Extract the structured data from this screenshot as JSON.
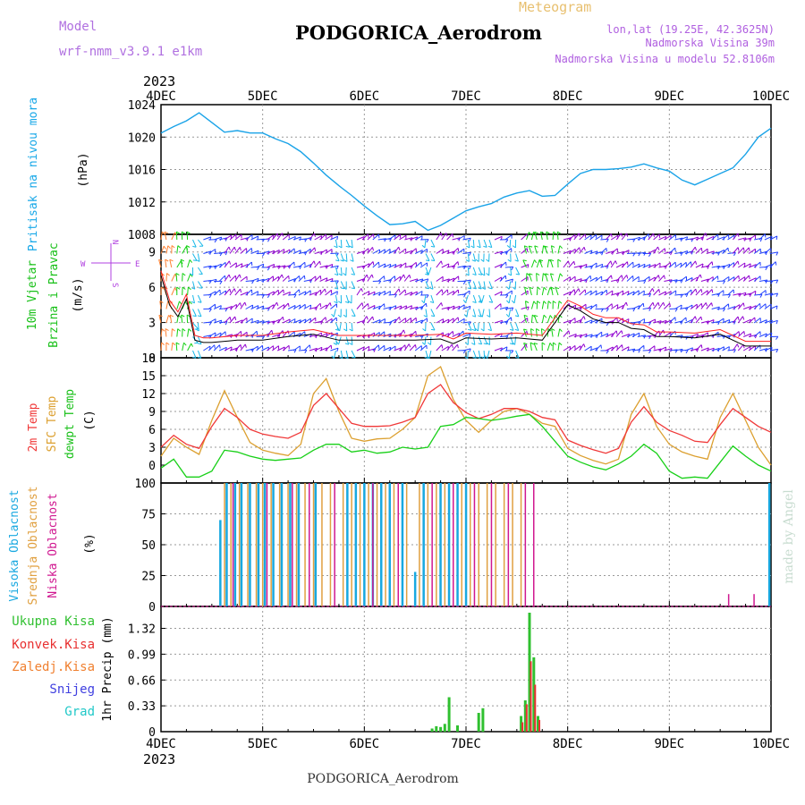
{
  "header": {
    "subtitle": "Meteogram",
    "station": "PODGORICA_Aerodrom",
    "model_label": "Model",
    "model_name": "wrf-nmm_v3.9.1 e1km",
    "lonlat": "lon,lat (19.25E, 42.3625N)",
    "elevation": "Nadmorska Visina 39m",
    "model_elevation": "Nadmorska Visina u modelu 52.8106m",
    "footer_station": "PODGORICA_Aerodrom",
    "watermark": "made by Angel"
  },
  "colors": {
    "pressure": "#1aa3e8",
    "wind_purple": "#9000d0",
    "wind_blue": "#2040ff",
    "wind_cyan": "#18b8e8",
    "wind_green": "#10d010",
    "wind_red": "#ff2020",
    "wind_orange": "#ff8030",
    "temp2m": "#f03838",
    "sfc_temp": "#dca030",
    "dewpoint": "#18d018",
    "cloud_high": "#18a8e0",
    "cloud_mid": "#e0a040",
    "cloud_low": "#d01890",
    "precip_total": "#30c030",
    "precip_conv": "#e83030",
    "precip_frozen": "#f08030",
    "precip_snow": "#4040e0",
    "precip_hail": "#20c8c8"
  },
  "chart_data": [
    {
      "type": "line",
      "id": "pressure",
      "ylabel_1": "Pritisak na nivou mora",
      "ylabel_2": "(hPa)",
      "ylim": [
        1008,
        1024
      ],
      "yticks": [
        1008,
        1012,
        1016,
        1020,
        1024
      ],
      "xlim": [
        0,
        144
      ],
      "xticks": [
        0,
        24,
        48,
        72,
        96,
        120,
        144
      ],
      "xticklabels": [
        "4DEC",
        "5DEC",
        "6DEC",
        "7DEC",
        "8DEC",
        "9DEC",
        "10DEC"
      ],
      "year": "2023",
      "x_hours": [
        0,
        3,
        6,
        9,
        12,
        15,
        18,
        21,
        24,
        27,
        30,
        33,
        36,
        39,
        42,
        45,
        48,
        51,
        54,
        57,
        60,
        63,
        66,
        69,
        72,
        75,
        78,
        81,
        84,
        87,
        90,
        93,
        96,
        99,
        102,
        105,
        108,
        111,
        114,
        117,
        120,
        123,
        126,
        129,
        132,
        135,
        138,
        141,
        144
      ],
      "series": [
        {
          "values": [
            1020.5,
            1021.3,
            1022.0,
            1023.0,
            1021.8,
            1020.6,
            1020.8,
            1020.5,
            1020.5,
            1019.8,
            1019.2,
            1018.2,
            1016.8,
            1015.3,
            1014.0,
            1012.8,
            1011.5,
            1010.3,
            1009.2,
            1009.3,
            1009.6,
            1008.5,
            1009.1,
            1010.0,
            1010.9,
            1011.4,
            1011.8,
            1012.6,
            1013.1,
            1013.4,
            1012.7,
            1012.8,
            1014.2,
            1015.5,
            1016.0,
            1016.0,
            1016.1,
            1016.3,
            1016.7,
            1016.2,
            1015.8,
            1014.7,
            1014.1,
            1014.8,
            1015.5,
            1016.2,
            1017.9,
            1020.0,
            1021.1
          ]
        }
      ]
    },
    {
      "type": "line",
      "id": "wind",
      "ylabel_1": "10m Vjetar",
      "ylabel_2": "Brzina i Pravac",
      "ylabel_3": "(m/s)",
      "compass_n": "N",
      "compass_s": "S",
      "compass_e": "E",
      "compass_w": "W",
      "ylim": [
        0,
        10.5
      ],
      "yticks": [
        0,
        3,
        6,
        9
      ],
      "x_hours": [
        0,
        2,
        4,
        6,
        8,
        10,
        12,
        18,
        24,
        30,
        36,
        42,
        48,
        54,
        60,
        66,
        69,
        72,
        78,
        84,
        90,
        96,
        99,
        102,
        105,
        108,
        111,
        114,
        117,
        120,
        126,
        132,
        138,
        144
      ],
      "series": [
        {
          "values": [
            7.0,
            4.5,
            3.5,
            5.0,
            1.5,
            1.3,
            1.3,
            1.5,
            1.5,
            1.8,
            2.0,
            1.5,
            1.5,
            1.5,
            1.5,
            1.6,
            1.2,
            1.7,
            1.6,
            1.7,
            1.5,
            4.5,
            4.0,
            3.3,
            3.0,
            3.0,
            2.5,
            2.4,
            1.8,
            1.8,
            1.7,
            2.0,
            1.0,
            1.0
          ]
        }
      ]
    },
    {
      "type": "line",
      "id": "temperature",
      "ylabel_1": "2m Temp",
      "ylabel_2": "SFC Temp",
      "ylabel_3": "dewpt Temp",
      "ylabel_4": "(C)",
      "ylim": [
        -3,
        18
      ],
      "yticks": [
        0,
        3,
        6,
        9,
        12,
        15,
        18
      ],
      "x_hours": [
        0,
        3,
        6,
        9,
        12,
        15,
        18,
        21,
        24,
        27,
        30,
        33,
        36,
        39,
        42,
        45,
        48,
        51,
        54,
        57,
        60,
        63,
        66,
        69,
        72,
        75,
        78,
        81,
        84,
        87,
        90,
        93,
        96,
        99,
        102,
        105,
        108,
        111,
        114,
        117,
        120,
        123,
        126,
        129,
        132,
        135,
        138,
        141,
        144
      ],
      "series": [
        {
          "name": "2m Temp",
          "values": [
            3.0,
            5.0,
            3.5,
            2.8,
            6.5,
            9.5,
            8.0,
            6.0,
            5.2,
            4.8,
            4.5,
            5.5,
            10.0,
            12.0,
            9.5,
            7.0,
            6.5,
            6.5,
            6.6,
            7.2,
            8.0,
            12.0,
            13.5,
            10.5,
            8.8,
            7.8,
            8.5,
            9.5,
            9.5,
            9.0,
            8.0,
            7.6,
            4.2,
            3.3,
            2.6,
            2.0,
            2.8,
            7.2,
            9.8,
            7.2,
            5.8,
            5.0,
            4.0,
            3.8,
            6.8,
            9.5,
            8.0,
            6.5,
            5.5
          ]
        },
        {
          "name": "SFC Temp",
          "values": [
            1.5,
            4.5,
            3.0,
            1.8,
            7.5,
            12.5,
            8.0,
            3.8,
            2.5,
            2.0,
            1.6,
            3.5,
            12.0,
            14.5,
            9.0,
            4.5,
            4.0,
            4.4,
            4.5,
            6.0,
            8.0,
            15.0,
            16.5,
            11.0,
            7.5,
            5.5,
            7.5,
            9.0,
            9.5,
            8.5,
            7.0,
            6.5,
            2.8,
            1.6,
            0.8,
            0.2,
            1.0,
            8.5,
            12.0,
            6.5,
            3.5,
            2.2,
            1.5,
            1.0,
            8.0,
            12.0,
            7.5,
            3.0,
            0.0
          ]
        },
        {
          "name": "dewpt Temp",
          "values": [
            -0.5,
            1.0,
            -2.0,
            -2.0,
            -1.0,
            2.5,
            2.2,
            1.5,
            1.0,
            0.8,
            1.0,
            1.2,
            2.5,
            3.5,
            3.5,
            2.2,
            2.5,
            2.0,
            2.2,
            3.0,
            2.7,
            3.0,
            6.5,
            6.8,
            8.0,
            7.8,
            7.5,
            7.8,
            8.2,
            8.5,
            6.5,
            4.0,
            1.5,
            0.5,
            -0.3,
            -0.8,
            0.2,
            1.5,
            3.5,
            2.0,
            -1.0,
            -2.2,
            -2.0,
            -2.2,
            0.5,
            3.2,
            1.5,
            0.0,
            -1.0
          ]
        }
      ]
    },
    {
      "type": "bar",
      "id": "clouds",
      "ylabel_1": "Visoka Oblacnost",
      "ylabel_2": "Srednja Oblacnost",
      "ylabel_3": "Niska Oblacnost",
      "ylabel_4": "(%)",
      "ylim": [
        0,
        100
      ],
      "yticks": [
        0,
        25,
        50,
        75,
        100
      ],
      "series": [
        {
          "name": "Visoka Oblacnost",
          "x_hours": [
            14,
            15.5,
            17.5,
            19,
            21,
            23,
            24.5,
            26.5,
            28.5,
            30.5,
            32.5,
            36.5,
            44,
            46,
            48,
            50,
            52,
            54,
            57,
            60,
            62,
            66,
            68,
            70,
            72
          ],
          "values": [
            70,
            100,
            100,
            100,
            100,
            100,
            100,
            100,
            100,
            100,
            100,
            100,
            100,
            100,
            100,
            100,
            100,
            100,
            100,
            28,
            100,
            100,
            100,
            100,
            100
          ]
        },
        {
          "name": "Srednja Oblacnost",
          "x_hours": [
            15,
            16.5,
            18.5,
            20.5,
            22.5,
            24,
            26,
            28,
            30,
            32,
            34,
            36,
            38,
            40,
            43,
            45,
            47,
            49,
            51,
            53,
            55,
            58,
            61,
            63,
            65,
            67,
            69,
            71,
            73,
            75,
            77,
            79,
            81,
            83,
            85
          ],
          "values": [
            100,
            100,
            100,
            100,
            100,
            100,
            100,
            100,
            100,
            100,
            100,
            100,
            100,
            100,
            100,
            100,
            100,
            100,
            100,
            100,
            100,
            100,
            100,
            100,
            100,
            100,
            100,
            100,
            100,
            100,
            100,
            100,
            100,
            100,
            100
          ]
        },
        {
          "name": "Niska Oblacnost",
          "x_hours": [
            17,
            25,
            31,
            35,
            41,
            50,
            56,
            64,
            69,
            74,
            78,
            82,
            86,
            88,
            134,
            140
          ],
          "values": [
            100,
            100,
            100,
            100,
            100,
            100,
            100,
            100,
            100,
            100,
            100,
            100,
            100,
            100,
            10,
            10
          ]
        },
        {
          "name": "Visoka Oblacnost end",
          "x_hours": [
            143.6
          ],
          "values": [
            100
          ]
        }
      ]
    },
    {
      "type": "bar",
      "id": "precip",
      "ylabel_1": "1hr Precip (mm)",
      "legend": [
        "Ukupna Kisa",
        "Konvek.Kisa",
        "Zaledj.Kisa",
        "Snijeg",
        "Grad"
      ],
      "ylim": [
        0,
        1.6
      ],
      "yticks": [
        0,
        0.33,
        0.66,
        0.99,
        1.32
      ],
      "ytick_labels": [
        "0",
        "0.33",
        "0.66",
        "0.99",
        "1.32"
      ],
      "series": [
        {
          "name": "Ukupna Kisa",
          "x_hours": [
            64,
            65,
            66,
            67,
            68,
            70,
            75,
            76,
            85,
            86,
            87,
            88,
            89
          ],
          "values": [
            0.04,
            0.07,
            0.06,
            0.1,
            0.44,
            0.08,
            0.24,
            0.3,
            0.2,
            0.4,
            1.52,
            0.95,
            0.2
          ]
        },
        {
          "name": "Konvek.Kisa",
          "x_hours": [
            85,
            86,
            87,
            88,
            89
          ],
          "values": [
            0.12,
            0.35,
            0.9,
            0.6,
            0.15
          ]
        }
      ]
    }
  ]
}
